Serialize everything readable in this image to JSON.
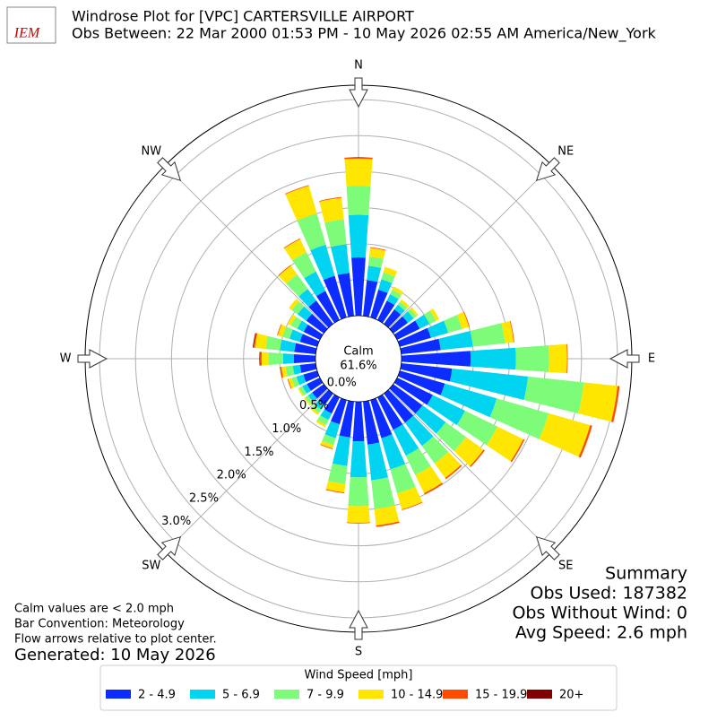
{
  "chart_data": {
    "type": "windrose",
    "title": "Windrose Plot for [VPC] CARTERSVILLE AIRPORT",
    "subtitle": "Obs Between: 22 Mar 2000 01:53 PM - 10 May 2026 02:55 AM America/New_York",
    "logo_text": "IEM",
    "direction_labels": [
      "N",
      "NE",
      "E",
      "SE",
      "S",
      "SW",
      "W",
      "NW"
    ],
    "calm_label": "Calm",
    "calm_value": 61.6,
    "calm_value_label": "61.6%",
    "x": [
      0,
      10,
      20,
      30,
      40,
      50,
      60,
      70,
      80,
      90,
      100,
      110,
      120,
      130,
      140,
      150,
      160,
      170,
      180,
      190,
      200,
      210,
      220,
      230,
      240,
      250,
      260,
      270,
      280,
      290,
      300,
      310,
      320,
      330,
      340,
      350
    ],
    "xlim": [
      0,
      360
    ],
    "ylim": [
      0,
      3.2
    ],
    "yticks": [
      {
        "value": 0,
        "label": "0.0%"
      },
      {
        "value": 0.5,
        "label": "0.5%"
      },
      {
        "value": 1,
        "label": "1.0%"
      },
      {
        "value": 1.5,
        "label": "1.5%"
      },
      {
        "value": 2,
        "label": "2.0%"
      },
      {
        "value": 2.5,
        "label": "2.5%"
      },
      {
        "value": 3,
        "label": "3.0%"
      }
    ],
    "grid": true,
    "legend_title": "Wind Speed [mph]",
    "series": [
      {
        "name": "2 - 4.9",
        "color": "#0d2cff",
        "values": [
          0.81,
          0.5,
          0.4,
          0.3,
          0.25,
          0.25,
          0.35,
          0.45,
          0.55,
          0.96,
          0.71,
          0.65,
          0.55,
          0.5,
          0.5,
          0.5,
          0.55,
          0.6,
          0.55,
          0.5,
          0.35,
          0.25,
          0.2,
          0.2,
          0.2,
          0.2,
          0.22,
          0.3,
          0.3,
          0.25,
          0.25,
          0.3,
          0.4,
          0.45,
          0.6,
          0.6
        ]
      },
      {
        "name": "5 - 6.9",
        "color": "#00d4f0",
        "values": [
          0.59,
          0.2,
          0.15,
          0.1,
          0.08,
          0.1,
          0.15,
          0.25,
          0.45,
          0.63,
          1.06,
          0.75,
          0.5,
          0.4,
          0.4,
          0.4,
          0.45,
          0.5,
          0.5,
          0.4,
          0.2,
          0.1,
          0.08,
          0.07,
          0.07,
          0.1,
          0.1,
          0.15,
          0.2,
          0.15,
          0.1,
          0.15,
          0.2,
          0.3,
          0.45,
          0.4
        ]
      },
      {
        "name": "7 - 9.9",
        "color": "#7dfc7a",
        "values": [
          0.4,
          0.13,
          0.1,
          0.07,
          0.05,
          0.05,
          0.1,
          0.2,
          0.45,
          0.46,
          0.78,
          0.75,
          0.5,
          0.35,
          0.3,
          0.3,
          0.35,
          0.4,
          0.4,
          0.25,
          0.1,
          0.08,
          0.06,
          0.05,
          0.05,
          0.07,
          0.1,
          0.2,
          0.2,
          0.1,
          0.1,
          0.1,
          0.25,
          0.3,
          0.45,
          0.35
        ]
      },
      {
        "name": "10 - 14.9",
        "color": "#ffe600",
        "values": [
          0.38,
          0.12,
          0.08,
          0.05,
          0.04,
          0.03,
          0.05,
          0.1,
          0.12,
          0.25,
          0.47,
          0.6,
          0.4,
          0.3,
          0.25,
          0.28,
          0.23,
          0.23,
          0.23,
          0.12,
          0.05,
          0.03,
          0.03,
          0.02,
          0.02,
          0.05,
          0.06,
          0.1,
          0.15,
          0.07,
          0.05,
          0.05,
          0.15,
          0.2,
          0.4,
          0.3
        ]
      },
      {
        "name": "15 - 19.9",
        "color": "#ff4b00",
        "values": [
          0.02,
          0.01,
          0,
          0,
          0,
          0,
          0,
          0.01,
          0.01,
          0.01,
          0.03,
          0.03,
          0.02,
          0.02,
          0.02,
          0.02,
          0.01,
          0.02,
          0.01,
          0.01,
          0.01,
          0,
          0,
          0,
          0,
          0.01,
          0.02,
          0.02,
          0.02,
          0.01,
          0,
          0,
          0.01,
          0.01,
          0.01,
          0.01
        ]
      },
      {
        "name": "20+",
        "color": "#800000",
        "values": [
          0,
          0,
          0,
          0,
          0,
          0,
          0,
          0,
          0,
          0,
          0,
          0,
          0,
          0,
          0,
          0,
          0,
          0,
          0,
          0,
          0,
          0,
          0,
          0,
          0,
          0,
          0,
          0.01,
          0.01,
          0,
          0,
          0,
          0,
          0,
          0,
          0
        ]
      }
    ],
    "notes": [
      "Calm values are < 2.0 mph",
      "Bar Convention: Meteorology",
      "Flow arrows relative to plot center."
    ],
    "generated": "Generated: 10 May 2026",
    "summary": [
      "Summary",
      "Obs Used: 187382",
      "Obs Without Wind: 0",
      "Avg Speed: 2.6 mph"
    ]
  }
}
